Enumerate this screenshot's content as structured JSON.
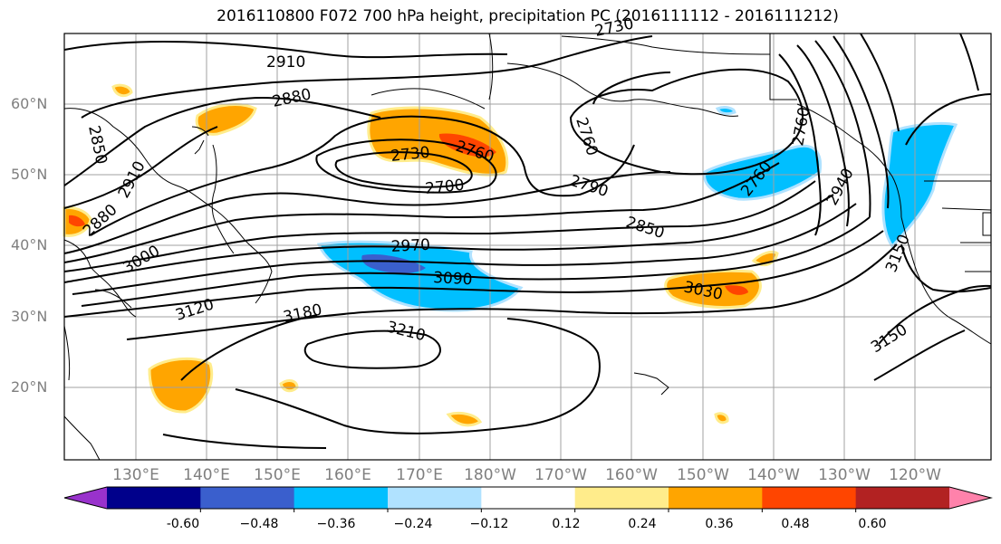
{
  "title": "2016110800 F072 700 hPa height, precipitation PC (2016111112 - 2016111212)",
  "lat_labels": [
    "60°N",
    "50°N",
    "40°N",
    "30°N",
    "20°N"
  ],
  "lon_labels": [
    "130°E",
    "140°E",
    "150°E",
    "160°E",
    "170°E",
    "180°W",
    "170°W",
    "160°W",
    "150°W",
    "140°W",
    "130°W",
    "120°W"
  ],
  "contour_labels": [
    "2910",
    "2880",
    "2850",
    "2910",
    "2880",
    "3000",
    "3120",
    "2730",
    "2760",
    "2700",
    "2730",
    "2790",
    "2850",
    "2970",
    "3090",
    "3180",
    "3210",
    "3030",
    "2760",
    "2760",
    "2940",
    "3150",
    "3150",
    "2760"
  ],
  "colorbar": {
    "tick_labels": [
      "-0.60",
      "−0.48",
      "−0.36",
      "−0.24",
      "−0.12",
      "0.12",
      "0.24",
      "0.36",
      "0.48",
      "0.60"
    ],
    "colors": [
      "#9932cc",
      "#00008b",
      "#3a5fcd",
      "#00bfff",
      "#b0e2ff",
      "#ffffff",
      "#ffec8b",
      "#ffa500",
      "#ff4500",
      "#b22222",
      "#ff82ab"
    ]
  },
  "colors": {
    "contour": "#000000",
    "coast": "#000000",
    "grid": "#a0a0a0"
  }
}
